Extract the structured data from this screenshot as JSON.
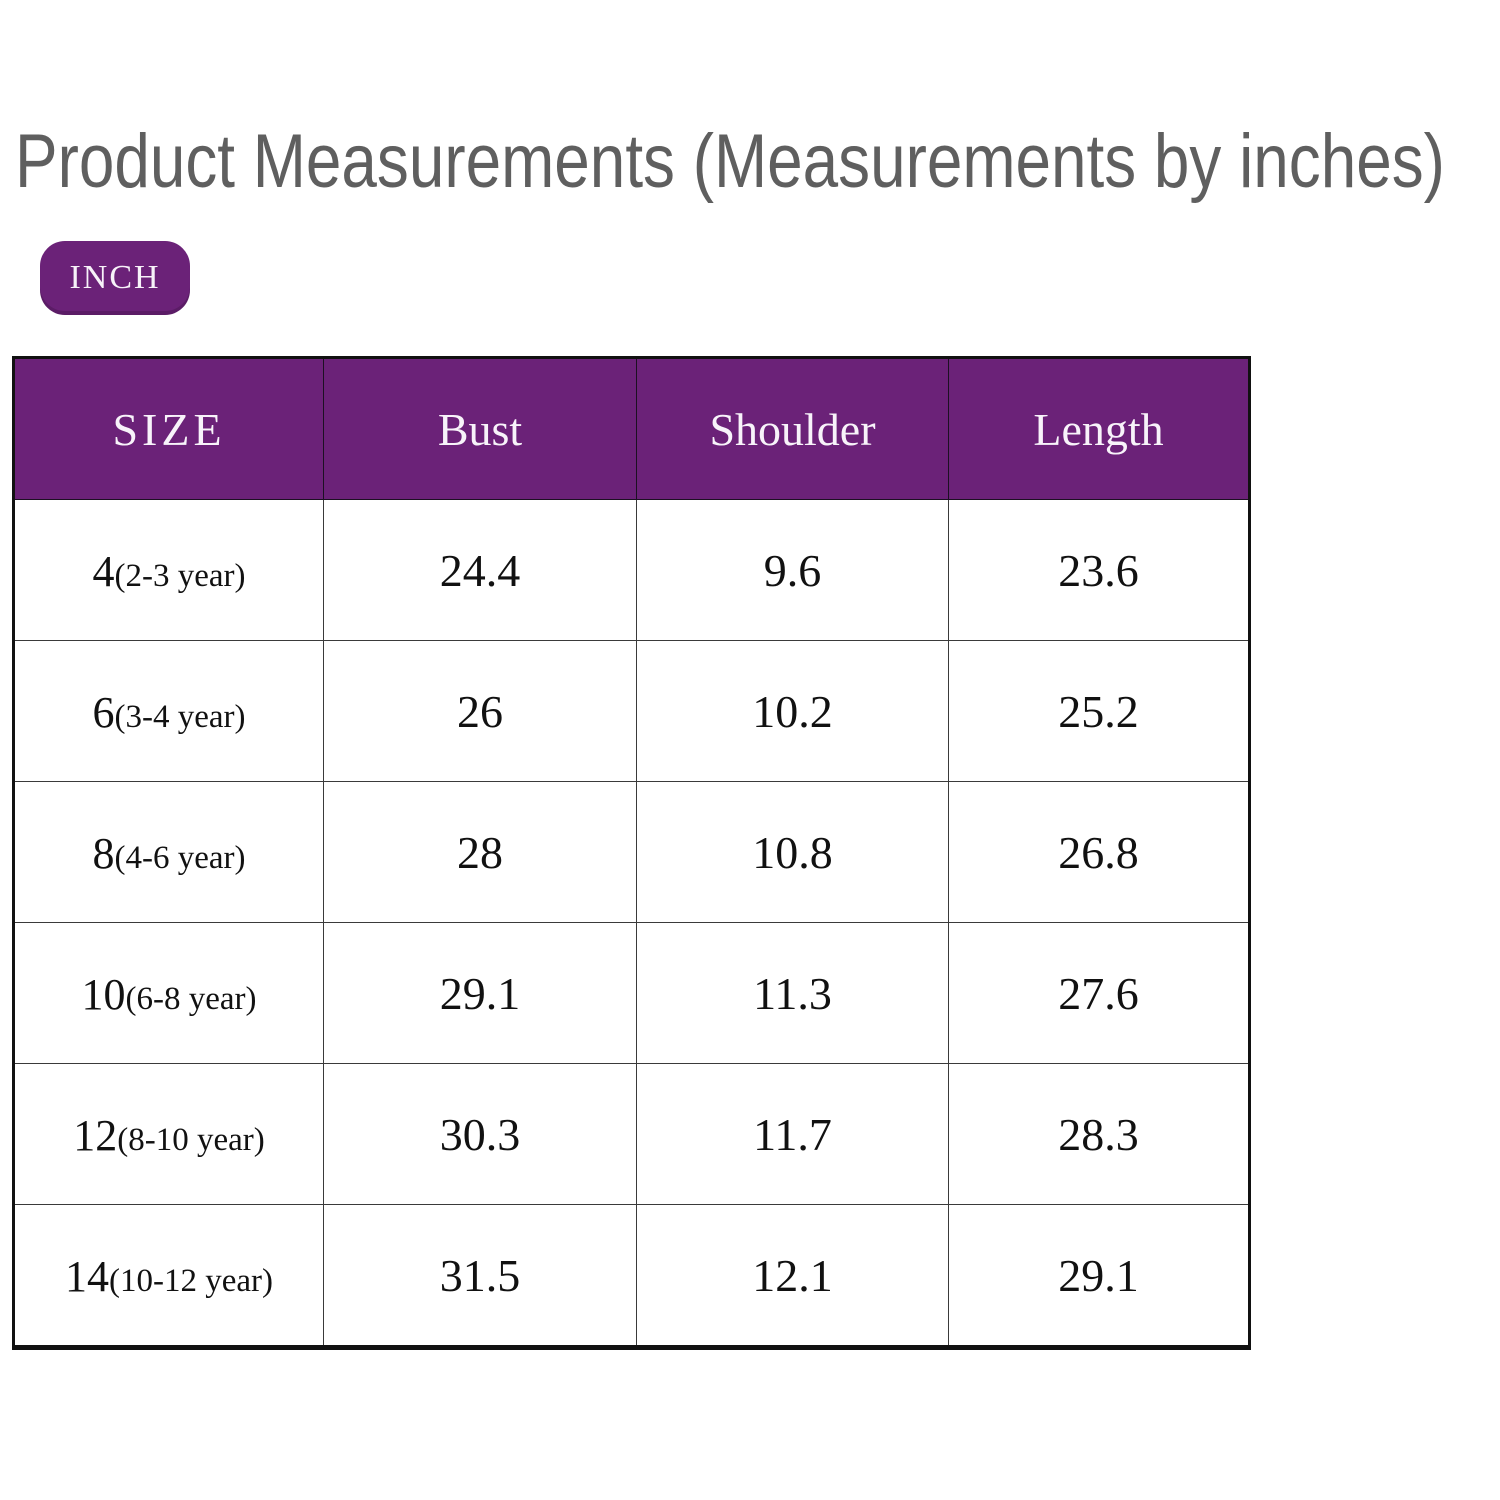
{
  "page": {
    "title": "Product Measurements (Measurements by inches)",
    "unit_badge_label": "INCH"
  },
  "colors": {
    "accent_purple": "#6b2278",
    "title_gray": "#5f5f5f",
    "grid_line": "#3a3a3a",
    "header_text": "#f8f3fa"
  },
  "table": {
    "headers": [
      "SIZE",
      "Bust",
      "Shoulder",
      "Length"
    ],
    "rows": [
      {
        "size_num": "4",
        "size_age": "(2-3 year)",
        "bust": "24.4",
        "shoulder": "9.6",
        "length": "23.6"
      },
      {
        "size_num": "6",
        "size_age": "(3-4 year)",
        "bust": "26",
        "shoulder": "10.2",
        "length": "25.2"
      },
      {
        "size_num": "8",
        "size_age": "(4-6 year)",
        "bust": "28",
        "shoulder": "10.8",
        "length": "26.8"
      },
      {
        "size_num": "10",
        "size_age": "(6-8 year)",
        "bust": "29.1",
        "shoulder": "11.3",
        "length": "27.6"
      },
      {
        "size_num": "12",
        "size_age": "(8-10 year)",
        "bust": "30.3",
        "shoulder": "11.7",
        "length": "28.3"
      },
      {
        "size_num": "14",
        "size_age": "(10-12 year)",
        "bust": "31.5",
        "shoulder": "12.1",
        "length": "29.1"
      }
    ]
  },
  "chart_data": {
    "type": "table",
    "title": "Product Measurements (Measurements by inches)",
    "unit": "INCH",
    "columns": [
      "SIZE",
      "Bust",
      "Shoulder",
      "Length"
    ],
    "rows": [
      [
        "4(2-3 year)",
        24.4,
        9.6,
        23.6
      ],
      [
        "6(3-4 year)",
        26,
        10.2,
        25.2
      ],
      [
        "8(4-6 year)",
        28,
        10.8,
        26.8
      ],
      [
        "10(6-8 year)",
        29.1,
        11.3,
        27.6
      ],
      [
        "12(8-10 year)",
        30.3,
        11.7,
        28.3
      ],
      [
        "14(10-12 year)",
        31.5,
        12.1,
        29.1
      ]
    ]
  }
}
